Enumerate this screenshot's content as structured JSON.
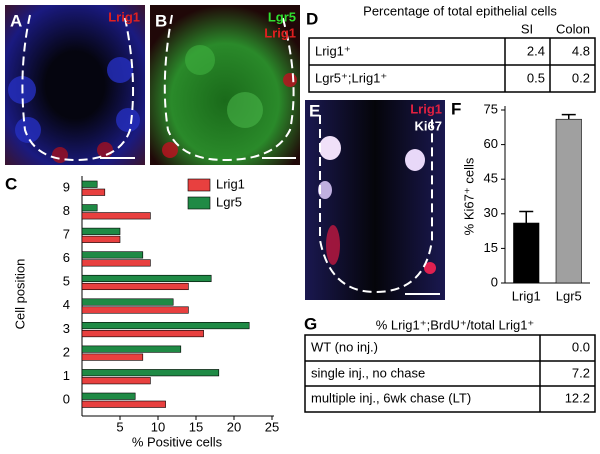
{
  "panels": {
    "a": {
      "label": "A",
      "stain": "Lrig1"
    },
    "b": {
      "label": "B",
      "stain1": "Lgr5",
      "stain2": "Lrig1"
    },
    "c": {
      "label": "C"
    },
    "d": {
      "label": "D"
    },
    "e": {
      "label": "E",
      "stain1": "Lrig1",
      "stain2": "Ki67"
    },
    "f": {
      "label": "F"
    },
    "g": {
      "label": "G"
    }
  },
  "table_d": {
    "title": "Percentage of total epithelial cells",
    "header": [
      "SI",
      "Colon"
    ],
    "rows": [
      [
        "Lrig1⁺",
        "2.4",
        "4.8"
      ],
      [
        "Lgr5⁺;Lrig1⁺",
        "0.5",
        "0.2"
      ]
    ]
  },
  "table_g": {
    "title": "% Lrig1⁺;BrdU⁺/total Lrig1⁺",
    "rows": [
      [
        "WT (no inj.)",
        "0.0"
      ],
      [
        "single inj., no chase",
        "7.2"
      ],
      [
        "multiple inj., 6wk chase (LT)",
        "12.2"
      ]
    ]
  },
  "chart_data": [
    {
      "type": "hbar",
      "categories": [
        "0",
        "1",
        "2",
        "3",
        "4",
        "5",
        "6",
        "7",
        "8",
        "9"
      ],
      "series": [
        {
          "name": "Lrig1",
          "color": "#e8403f",
          "values": [
            11,
            9,
            8,
            16,
            14,
            14,
            9,
            5,
            9,
            3
          ]
        },
        {
          "name": "Lgr5",
          "color": "#1f8a45",
          "values": [
            7,
            18,
            13,
            22,
            12,
            17,
            8,
            5,
            2,
            2
          ]
        }
      ],
      "xlim": [
        0,
        25
      ],
      "xticks": [
        5,
        10,
        15,
        20,
        25
      ],
      "x_label": "% Positive cells",
      "y_label": "Cell position",
      "legend": "top-right"
    },
    {
      "type": "bar",
      "categories": [
        "Lrig1",
        "Lgr5"
      ],
      "values": [
        26,
        71
      ],
      "errors": [
        5,
        2
      ],
      "colors": [
        "#000000",
        "#a0a0a0"
      ],
      "ylim": [
        0,
        75
      ],
      "yticks": [
        0,
        15,
        30,
        45,
        60,
        75
      ],
      "y_label": "% Ki67⁺ cells"
    }
  ]
}
